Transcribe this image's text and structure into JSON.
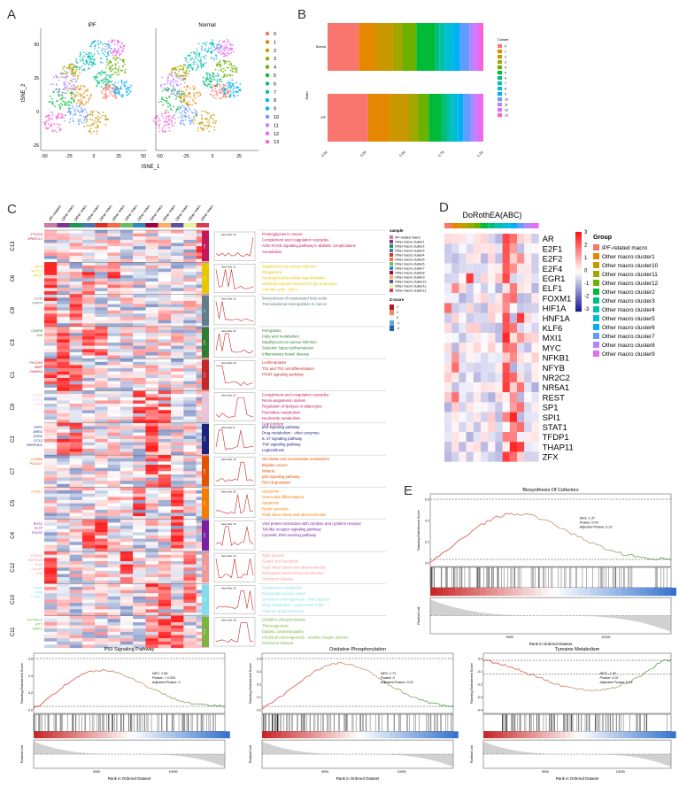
{
  "panel_labels": {
    "A": "A",
    "B": "B",
    "C": "C",
    "D": "D",
    "E": "E"
  },
  "panel_a": {
    "left_title": "IPF",
    "right_title": "Normal",
    "xlabel": "tSNE_1",
    "ylabel": "tSNE_2",
    "x_ticks": [
      "-50",
      "-25",
      "0",
      "25",
      "50"
    ],
    "x_ticks_right": [
      "-50",
      "-25",
      "0",
      "25"
    ],
    "y_ticks": [
      "50",
      "25",
      "0",
      "-25"
    ],
    "clusters": [
      "0",
      "1",
      "2",
      "3",
      "4",
      "5",
      "6",
      "7",
      "8",
      "9",
      "10",
      "11",
      "12",
      "13"
    ],
    "cluster_colors": [
      "#F8766D",
      "#E58700",
      "#C99800",
      "#A3A500",
      "#6BB100",
      "#00BA38",
      "#00BF7D",
      "#00C0AF",
      "#00BCD8",
      "#00B0F6",
      "#619CFF",
      "#B983FF",
      "#E76BF3",
      "#FD61D1"
    ]
  },
  "chart_data": {
    "type": "bar",
    "title": "",
    "xlabel": "",
    "ylabel": "Ratio",
    "categories": [
      "Normal",
      "IPF"
    ],
    "legend_title": "Cluster",
    "x_ticks": [
      "0.00",
      "0.25",
      "0.50",
      "0.75",
      "1.00"
    ],
    "series": [
      {
        "name": "0",
        "values": [
          0.2,
          0.26
        ]
      },
      {
        "name": "1",
        "values": [
          0.11,
          0.14
        ]
      },
      {
        "name": "2",
        "values": [
          0.11,
          0.12
        ]
      },
      {
        "name": "3",
        "values": [
          0.06,
          0.06
        ]
      },
      {
        "name": "4",
        "values": [
          0.09,
          0.07
        ]
      },
      {
        "name": "5",
        "values": [
          0.12,
          0.08
        ]
      },
      {
        "name": "6",
        "values": [
          0.03,
          0.04
        ]
      },
      {
        "name": "7",
        "values": [
          0.04,
          0.03
        ]
      },
      {
        "name": "8",
        "values": [
          0.05,
          0.04
        ]
      },
      {
        "name": "9",
        "values": [
          0.04,
          0.03
        ]
      },
      {
        "name": "10",
        "values": [
          0.06,
          0.05
        ]
      },
      {
        "name": "11",
        "values": [
          0.04,
          0.04
        ]
      },
      {
        "name": "12",
        "values": [
          0.03,
          0.03
        ]
      },
      {
        "name": "13",
        "values": [
          0.02,
          0.01
        ]
      }
    ]
  },
  "panel_c": {
    "column_headers": [
      "IPF-related macro",
      "Other macro cluster1",
      "Other macro cluster2",
      "Other macro cluster3",
      "Other macro cluster4",
      "Other macro cluster5",
      "Other macro cluster6",
      "Other macro cluster7",
      "Other macro cluster8",
      "Other macro cluster9",
      "Other macro cluster10",
      "Other macro cluster11",
      "Other macro cluster12"
    ],
    "column_colors": [
      "#cc79a7",
      "#7b3294",
      "#1a9850",
      "#4575b4",
      "#d73027",
      "#f46d43",
      "#66bd63",
      "#3288bd",
      "#9e0142",
      "#fdae61",
      "#5e4fa2",
      "#e6f598",
      "#d53e4f"
    ],
    "clusters": [
      {
        "name": "C13",
        "genes": [
          "PTGDS",
          "SPARCL1"
        ],
        "count": "n=8",
        "gene_size": "Gene Size: 16",
        "terms": [
          "Proteoglycans in cancer",
          "Complement and coagulation cascades",
          "AGE-RAGE signaling pathway in diabetic complications",
          "Amoebiasis"
        ],
        "color": "#c2185b"
      },
      {
        "name": "C6",
        "genes": [
          "FBP1",
          "APOC2",
          "APOE"
        ],
        "count": "n=9",
        "gene_size": "Gene Size: 11",
        "terms": [
          "Staphylococcus aureus infection",
          "Phagosome",
          "Neutrophil extracellular trap formation",
          "Intestinal immune network for IgA production",
          "Viral life cycle - HIV-1"
        ],
        "color": "#e6c700"
      },
      {
        "name": "C8",
        "genes": [
          "CD36",
          "FABP4"
        ],
        "count": "n=7",
        "gene_size": "Gene Size: 10",
        "terms": [
          "Biosynthesis of unsaturated fatty acids",
          "Transcriptional misregulation in cancer"
        ],
        "color": "#607d8b"
      },
      {
        "name": "C3",
        "genes": [
          "CEBPB",
          "JUN"
        ],
        "count": "n=15",
        "gene_size": "Gene Size: 21",
        "terms": [
          "Ferroptosis",
          "Fatty acid metabolism",
          "Staphylococcus aureus infection",
          "Systemic lupus erythematosus",
          "Inflammatory bowel disease"
        ],
        "color": "#2e7d32"
      },
      {
        "name": "C1",
        "genes": [
          "PHLDA3",
          "MMP",
          "FAM84A"
        ],
        "count": "n=17",
        "gene_size": "Gene Size: 20",
        "terms": [
          "Leishmaniasis",
          "Th1 and Th2 cell differentiation",
          "PPAR signaling pathway"
        ],
        "color": "#c62828"
      },
      {
        "name": "C9",
        "genes": [
          "CXCL8",
          "CCL2",
          "IL1B"
        ],
        "count": "n=11",
        "gene_size": "Gene Size: 22",
        "terms": [
          "Complement and coagulation cascades",
          "Renin-angiotensin system",
          "Regulation of lipolysis in adipocytes",
          "Pyrimidine metabolism",
          "Nucleotide metabolism",
          "Gap junction"
        ],
        "color": "#e8c4d8"
      },
      {
        "name": "C2",
        "genes": [
          "SPP1",
          "AREG",
          "SOD2",
          "CCL2",
          "HERPUD1"
        ],
        "count": "n=21",
        "gene_size": "Gene Size: 8",
        "terms": [
          "p53 signaling pathway",
          "Drug metabolism - other enzymes",
          "IL-17 signaling pathway",
          "TNF signaling pathway",
          "Legionellosis"
        ],
        "color": "#1a237e"
      },
      {
        "name": "C7",
        "genes": [
          "LILRB4",
          "PLA2G7"
        ],
        "count": "n=10",
        "gene_size": "Gene Size: 12",
        "terms": [
          "Nicotinate and nicotinamide metabolism",
          "Bladder cancer",
          "Malaria",
          "p53 signaling pathway",
          "RNA degradation"
        ],
        "color": "#e65100"
      },
      {
        "name": "C5",
        "genes": [
          "CHI3L1"
        ],
        "count": "n=8",
        "gene_size": "Gene Size: 20",
        "terms": [
          "Lysosome",
          "Osteoclast differentiation",
          "Apoptosis",
          "Renin secretion",
          "Fluid shear stress and atherosclerosis"
        ],
        "color": "#f57c00"
      },
      {
        "name": "C4",
        "genes": [
          "RGS1",
          "PLTP",
          "FOLR2"
        ],
        "count": "n=13",
        "gene_size": "Gene Size: 14",
        "terms": [
          "Viral protein interaction with cytokine and cytokine receptor",
          "Toll-like receptor signaling pathway",
          "Cytosolic DNA-sensing pathway"
        ],
        "color": "#7b1fa2"
      },
      {
        "name": "C12",
        "genes": [
          "S100A8",
          "SERPINB",
          "IL1B",
          "CALM3",
          "CD9"
        ],
        "count": "n=12",
        "gene_size": "Gene Size: 13",
        "terms": [
          "Tight junction",
          "Gastric acid secretion",
          "Fluid shear stress and atherosclerosis",
          "Pathogenic Escherichia coli infection",
          "Parkinson disease"
        ],
        "color": "#ef9a9a"
      },
      {
        "name": "C10",
        "genes": [
          "TXNIP",
          "PPIB",
          "CHI3L1"
        ],
        "count": "n=9",
        "gene_size": "Gene Size: 15",
        "terms": [
          "Glutathione metabolism",
          "Nucleotide excision repair",
          "Chemical carcinogenesis - DNA adducts",
          "Drug metabolism - cytochrome P450",
          "Platinum drug resistance"
        ],
        "color": "#80deea"
      },
      {
        "name": "C11",
        "genes": [
          "ATP5MC2",
          "JPT1",
          "BNIP1"
        ],
        "count": "n=14",
        "gene_size": "Gene Size: 18",
        "terms": [
          "Oxidative phosphorylation",
          "Thermogenesis",
          "Diabetic cardiomyopathy",
          "Chemical carcinogenesis - reactive oxygen species",
          "Parkinson disease"
        ],
        "color": "#7cb342"
      }
    ],
    "sample_legend_title": "sample",
    "sample_legend": [
      "IPF-related macro",
      "Other macro cluster1",
      "Other macro cluster2",
      "Other macro cluster3",
      "Other macro cluster4",
      "Other macro cluster5",
      "Other macro cluster6",
      "Other macro cluster7",
      "Other macro cluster8",
      "Other macro cluster9",
      "Other macro cluster10",
      "Other macro cluster11",
      "Other macro cluster12"
    ],
    "zscore_title": "Z-score",
    "zscore_ticks": [
      "2",
      "1",
      "0",
      "-1",
      "-2"
    ]
  },
  "panel_d": {
    "title": "DoRothEA(ABC)",
    "genes": [
      "AR",
      "E2F1",
      "E2F2",
      "E2F4",
      "EGR1",
      "ELF1",
      "FOXM1",
      "HIF1A",
      "HNF1A",
      "KLF6",
      "MXI1",
      "MYC",
      "NFKB1",
      "NFYB",
      "NR2C2",
      "NR5A1",
      "REST",
      "SP1",
      "SPI1",
      "STAT1",
      "TFDP1",
      "THAP11",
      "ZFX"
    ],
    "group_header": "Group",
    "colorbar_ticks": [
      "3",
      "2",
      "1",
      "0",
      "-1",
      "-2",
      "-3"
    ],
    "groups": [
      "IPF-related macro",
      "Other macro cluster1",
      "Other macro cluster10",
      "Other macro cluster11",
      "Other macro cluster12",
      "Other macro cluster2",
      "Other macro cluster3",
      "Other macro cluster4",
      "Other macro cluster5",
      "Other macro cluster6",
      "Other macro cluster7",
      "Other macro cluster8",
      "Other macro cluster9"
    ],
    "group_colors": [
      "#F8766D",
      "#E58700",
      "#C99800",
      "#A3A500",
      "#6BB100",
      "#00BA38",
      "#00BF7D",
      "#00C0AF",
      "#00BCD8",
      "#00B0F6",
      "#619CFF",
      "#B983FF",
      "#E76BF3"
    ]
  },
  "gsea": [
    {
      "title": "Biosynthesis Of Cofactors",
      "nes": "NES: 1.37",
      "pvalue": "Pvalue: 0.04",
      "adj": "Adjusted Pvalue: 0.22",
      "ylabel1": "Running Enrichment Score",
      "ylabel2": "Ranked List",
      "xlabel": "Rank in Ordered Dataset",
      "x_ticks": [
        "5000",
        "10000"
      ],
      "y_ticks": [
        "0.3",
        "0.2",
        "0.1",
        "0.0"
      ]
    },
    {
      "title": "P53 Signaling Pathway",
      "nes": "NES: 1.99",
      "pvalue": "Pvalue: < 0.001",
      "adj": "Adjusted Pvalue: 0",
      "ylabel1": "Running Enrichment Score",
      "ylabel2": "Ranked List",
      "xlabel": "Rank in Ordered Dataset",
      "x_ticks": [
        "5000",
        "10000"
      ],
      "y_ticks": [
        "0.6",
        "0.4",
        "0.2",
        "0.0"
      ]
    },
    {
      "title": "Oxidative Phosphorylation",
      "nes": "NES: 1.71",
      "pvalue": "Pvalue: 0",
      "adj": "Adjusted Pvalue: 0.02",
      "ylabel1": "Running Enrichment Score",
      "ylabel2": "Ranked List",
      "xlabel": "Rank in Ordered Dataset",
      "x_ticks": [
        "5000",
        "10000"
      ],
      "y_ticks": [
        "0.4",
        "0.3",
        "0.2",
        "0.1",
        "0.0"
      ]
    },
    {
      "title": "Tyrosine Metabolism",
      "nes": "NES: -1.52",
      "pvalue": "Pvalue: 0.02",
      "adj": "Adjusted Pvalue: 0.13",
      "ylabel1": "Running Enrichment Score",
      "ylabel2": "Ranked List",
      "xlabel": "Rank in Ordered Dataset",
      "x_ticks": [
        "5000",
        "10000"
      ],
      "y_ticks": [
        "0.0",
        "-0.1",
        "-0.2",
        "-0.3",
        "-0.4"
      ]
    }
  ]
}
